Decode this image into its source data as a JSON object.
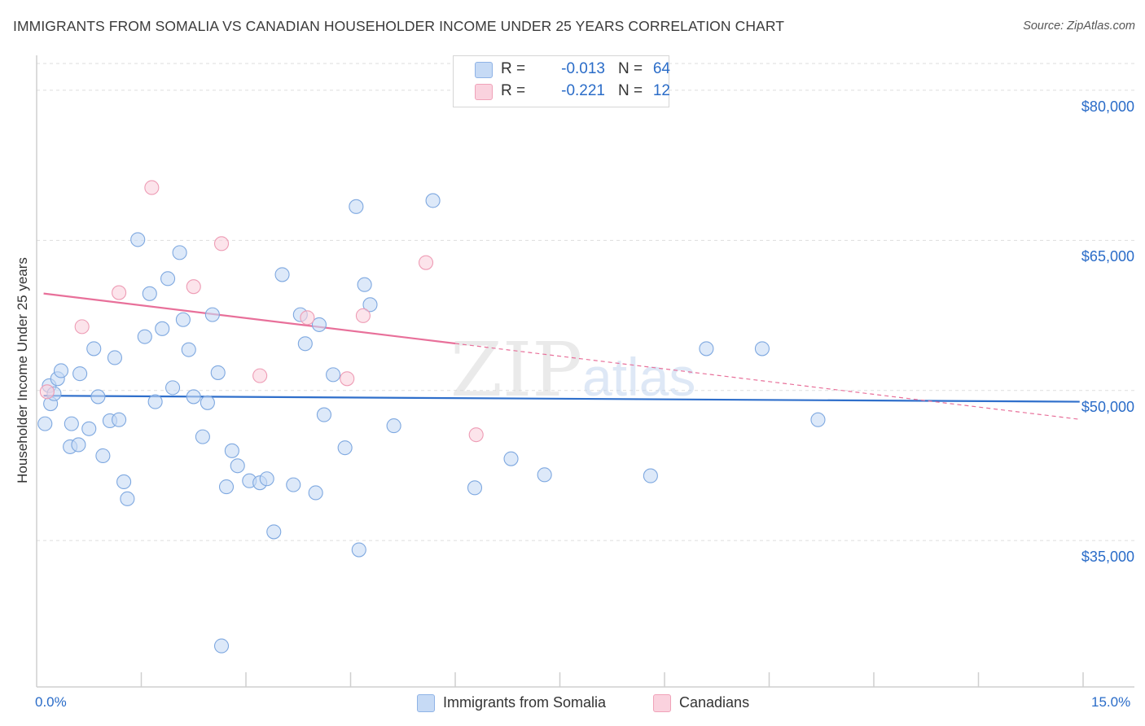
{
  "title": "IMMIGRANTS FROM SOMALIA VS CANADIAN HOUSEHOLDER INCOME UNDER 25 YEARS CORRELATION CHART",
  "source": "Source: ZipAtlas.com",
  "watermark": {
    "zip": "ZIP",
    "atlas": "atlas"
  },
  "legend": {
    "rows": [
      {
        "r_label": "R =",
        "r_value": "-0.013",
        "n_label": "N =",
        "n_value": "64",
        "color": "#a9c8f0"
      },
      {
        "r_label": "R =",
        "r_value": "-0.221",
        "n_label": "N =",
        "n_value": "12",
        "color": "#f7b8ca"
      }
    ]
  },
  "bottom_legend": [
    {
      "label": "Immigrants from Somalia",
      "color": "#a9c8f0"
    },
    {
      "label": "Canadians",
      "color": "#f7b8ca"
    }
  ],
  "x_axis": {
    "min_label": "0.0%",
    "max_label": "15.0%"
  },
  "y_axis": {
    "label": "Householder Income Under 25 years",
    "ticks": [
      {
        "value": 80000,
        "label": "$80,000"
      },
      {
        "value": 65000,
        "label": "$65,000"
      },
      {
        "value": 50000,
        "label": "$50,000"
      },
      {
        "value": 35000,
        "label": "$35,000"
      }
    ]
  },
  "colors": {
    "blue": "#2f6fcb",
    "pink": "#e8709a",
    "blue_fill": "#c6daf5",
    "pink_fill": "#fad2de",
    "grid": "#dddddd"
  },
  "chart_data": {
    "type": "scatter",
    "title": "IMMIGRANTS FROM SOMALIA VS CANADIAN HOUSEHOLDER INCOME UNDER 25 YEARS CORRELATION CHART",
    "xlabel": "",
    "ylabel": "Householder Income Under 25 years",
    "xlim": [
      0,
      15
    ],
    "ylim": [
      20700,
      83000
    ],
    "grid": true,
    "legend_position": "top-center",
    "series": [
      {
        "name": "Immigrants from Somalia",
        "color": "#a9c8f0",
        "r": -0.013,
        "n": 64,
        "trend": {
          "x": [
            0,
            15
          ],
          "y": [
            49800,
            49200
          ],
          "dashed_from": null
        },
        "points": [
          [
            0.18,
            50.8
          ],
          [
            0.2,
            49.0
          ],
          [
            0.12,
            47.0
          ],
          [
            0.3,
            51.5
          ],
          [
            0.35,
            52.3
          ],
          [
            0.5,
            47.0
          ],
          [
            0.48,
            44.7
          ],
          [
            0.6,
            44.9
          ],
          [
            0.62,
            52.0
          ],
          [
            0.75,
            46.5
          ],
          [
            0.82,
            54.5
          ],
          [
            0.88,
            49.7
          ],
          [
            0.95,
            43.8
          ],
          [
            1.05,
            47.3
          ],
          [
            1.12,
            53.6
          ],
          [
            1.18,
            47.4
          ],
          [
            1.25,
            41.2
          ],
          [
            1.3,
            39.5
          ],
          [
            1.45,
            65.4
          ],
          [
            1.55,
            55.7
          ],
          [
            1.62,
            60.0
          ],
          [
            1.7,
            49.2
          ],
          [
            1.8,
            56.5
          ],
          [
            1.88,
            61.5
          ],
          [
            1.95,
            50.6
          ],
          [
            2.05,
            64.1
          ],
          [
            2.1,
            57.4
          ],
          [
            2.18,
            54.4
          ],
          [
            2.25,
            49.7
          ],
          [
            2.38,
            45.7
          ],
          [
            2.45,
            49.1
          ],
          [
            2.52,
            57.9
          ],
          [
            2.6,
            52.1
          ],
          [
            2.65,
            24.8
          ],
          [
            2.72,
            40.7
          ],
          [
            2.8,
            44.3
          ],
          [
            2.88,
            42.8
          ],
          [
            3.05,
            41.3
          ],
          [
            3.2,
            41.1
          ],
          [
            3.3,
            41.5
          ],
          [
            3.4,
            36.2
          ],
          [
            3.52,
            61.9
          ],
          [
            3.68,
            40.9
          ],
          [
            3.78,
            57.9
          ],
          [
            3.85,
            55.0
          ],
          [
            4.0,
            40.1
          ],
          [
            4.05,
            56.9
          ],
          [
            4.12,
            47.9
          ],
          [
            4.25,
            51.9
          ],
          [
            4.42,
            44.6
          ],
          [
            4.58,
            68.7
          ],
          [
            4.62,
            34.4
          ],
          [
            4.7,
            60.9
          ],
          [
            4.78,
            58.9
          ],
          [
            5.12,
            46.8
          ],
          [
            5.68,
            69.3
          ],
          [
            6.28,
            40.6
          ],
          [
            6.8,
            43.5
          ],
          [
            7.28,
            41.9
          ],
          [
            8.8,
            41.8
          ],
          [
            9.6,
            54.5
          ],
          [
            10.4,
            54.5
          ],
          [
            11.2,
            47.4
          ],
          [
            0.25,
            50.0
          ]
        ]
      },
      {
        "name": "Canadians",
        "color": "#f7b8ca",
        "r": -0.221,
        "n": 12,
        "trend": {
          "x": [
            0,
            15
          ],
          "y": [
            60100,
            47400
          ],
          "solid_until_x": 6
        },
        "points": [
          [
            0.15,
            50.2
          ],
          [
            0.65,
            56.7
          ],
          [
            1.18,
            60.1
          ],
          [
            1.65,
            70.6
          ],
          [
            2.25,
            60.7
          ],
          [
            2.65,
            65.0
          ],
          [
            3.2,
            51.8
          ],
          [
            3.88,
            57.6
          ],
          [
            4.45,
            51.5
          ],
          [
            4.68,
            57.8
          ],
          [
            5.58,
            63.1
          ],
          [
            6.3,
            45.9
          ]
        ]
      }
    ]
  }
}
